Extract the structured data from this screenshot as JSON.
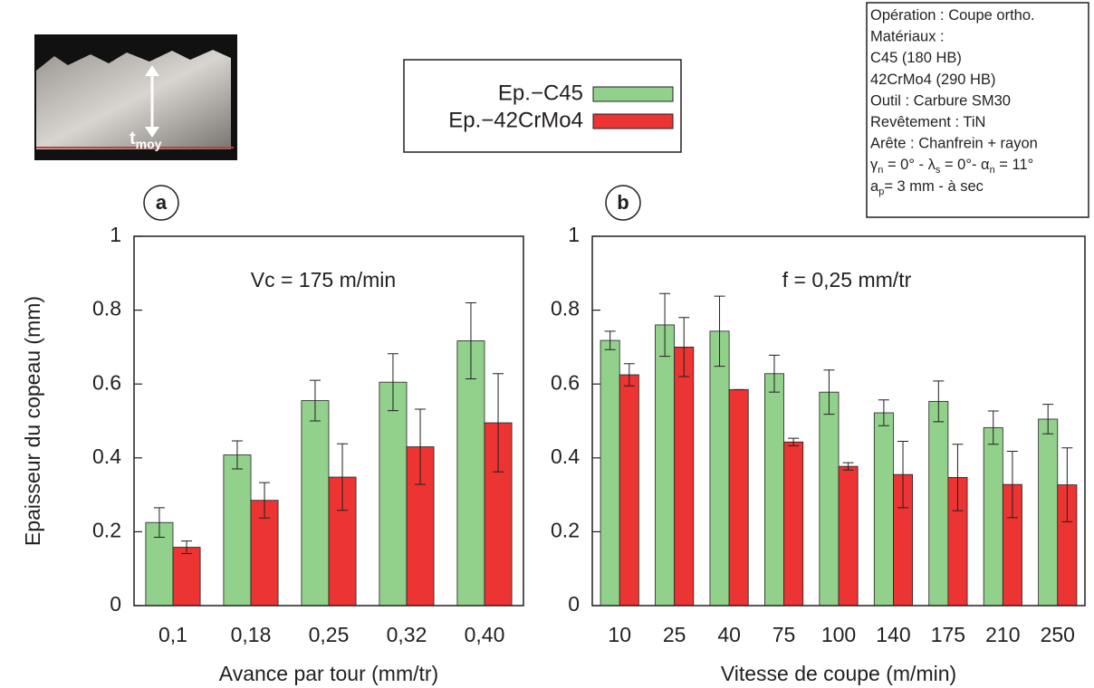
{
  "inset_label": [
    "t",
    "moy"
  ],
  "info_box": {
    "lines": [
      [
        "Opération : Coupe ortho."
      ],
      [
        "Matériaux :"
      ],
      [
        "C45 (180 HB)"
      ],
      [
        "42CrMo4 (290 HB)"
      ],
      [
        "Outil : Carbure SM30"
      ],
      [
        "Revêtement : TiN"
      ],
      [
        "Arête : Chanfrein + rayon"
      ],
      [
        "γ",
        "n",
        " = 0° - λ",
        "s",
        " = 0°-  α",
        "n",
        " = 11°"
      ],
      [
        "a",
        "p",
        "= 3 mm - à sec"
      ]
    ]
  },
  "chart_data": [
    {
      "type": "bar",
      "panel_label": "a",
      "annotation": "Vc = 175 m/min",
      "xlabel": "Avance par tour (mm/tr)",
      "ylabel": "Epaisseur du copeau (mm)",
      "categories": [
        "0,1",
        "0,18",
        "0,25",
        "0,32",
        "0,40"
      ],
      "ylim": [
        0,
        1
      ],
      "yticks": [
        0,
        0.2,
        0.4,
        0.6,
        0.8,
        1
      ],
      "series": [
        {
          "name": "Ep.−C45",
          "color": "#92d18b",
          "values": [
            0.225,
            0.408,
            0.555,
            0.605,
            0.717
          ],
          "errors": [
            0.04,
            0.038,
            0.055,
            0.077,
            0.103
          ]
        },
        {
          "name": "Ep.−42CrMo4",
          "color": "#ec3432",
          "values": [
            0.158,
            0.285,
            0.348,
            0.43,
            0.495
          ],
          "errors": [
            0.017,
            0.048,
            0.09,
            0.102,
            0.133
          ]
        }
      ]
    },
    {
      "type": "bar",
      "panel_label": "b",
      "annotation": "f = 0,25 mm/tr",
      "xlabel": "Vitesse de coupe (m/min)",
      "categories": [
        "10",
        "25",
        "40",
        "75",
        "100",
        "140",
        "175",
        "210",
        "250"
      ],
      "ylim": [
        0,
        1
      ],
      "yticks": [
        0,
        0.2,
        0.4,
        0.6,
        0.8,
        1
      ],
      "series": [
        {
          "color": "#92d18b",
          "values": [
            0.718,
            0.76,
            0.743,
            0.628,
            0.578,
            0.522,
            0.553,
            0.482,
            0.505
          ],
          "errors": [
            0.025,
            0.085,
            0.095,
            0.05,
            0.06,
            0.035,
            0.055,
            0.045,
            0.04
          ]
        },
        {
          "color": "#ec3432",
          "values": [
            0.625,
            0.7,
            0.585,
            0.443,
            0.377,
            0.355,
            0.347,
            0.328,
            0.327
          ],
          "errors": [
            0.03,
            0.08,
            0,
            0.01,
            0.01,
            0.09,
            0.09,
            0.09,
            0.1
          ]
        }
      ]
    }
  ]
}
